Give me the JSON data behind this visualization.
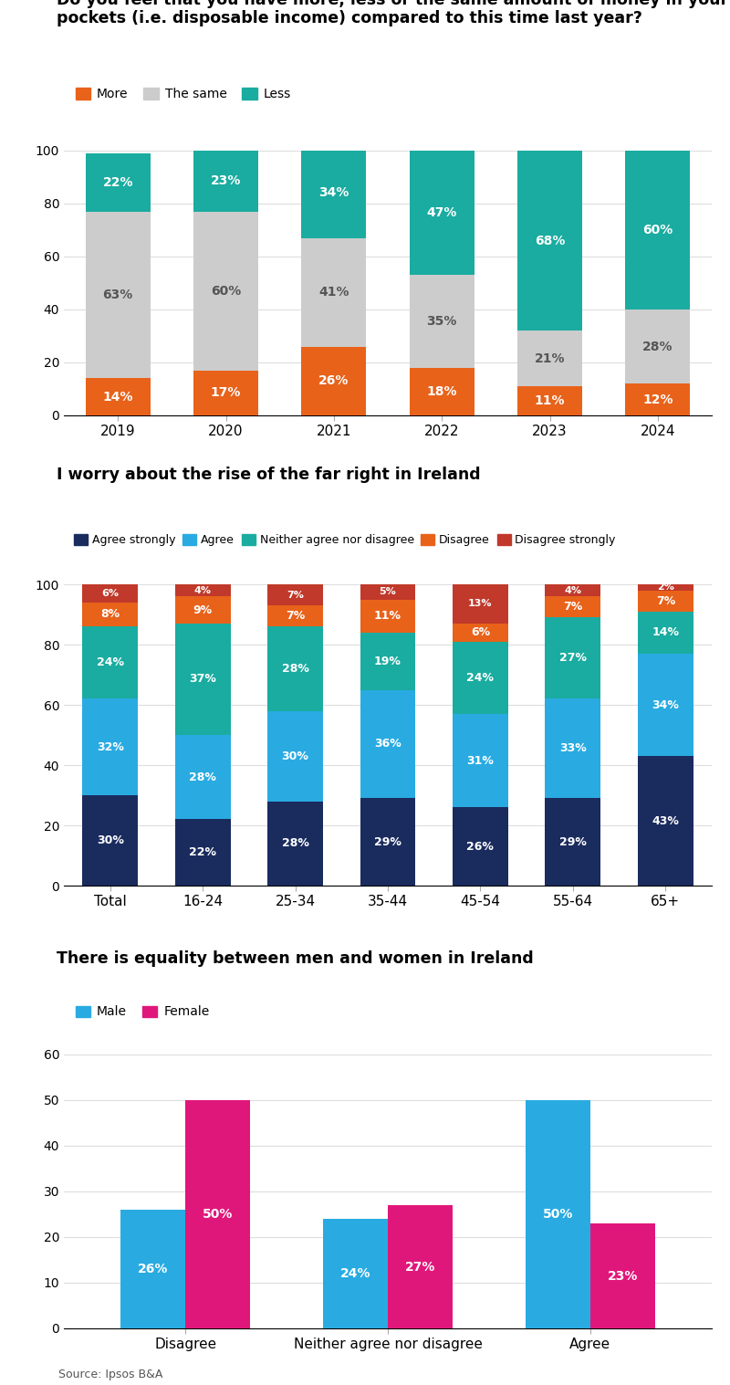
{
  "chart1": {
    "title": "Do you feel that you have more, less or the same amount of money in your\npockets (i.e. disposable income) compared to this time last year?",
    "categories": [
      "2019",
      "2020",
      "2021",
      "2022",
      "2023",
      "2024"
    ],
    "more": [
      14,
      17,
      26,
      18,
      11,
      12
    ],
    "same": [
      63,
      60,
      41,
      35,
      21,
      28
    ],
    "less": [
      22,
      23,
      34,
      47,
      68,
      60
    ],
    "colors": {
      "more": "#E8621A",
      "same": "#CCCCCC",
      "less": "#1AACA0"
    },
    "legend": [
      "More",
      "The same",
      "Less"
    ]
  },
  "chart2": {
    "title": "I worry about the rise of the far right in Ireland",
    "categories": [
      "Total",
      "16-24",
      "25-34",
      "35-44",
      "45-54",
      "55-64",
      "65+"
    ],
    "agree_strongly": [
      30,
      22,
      28,
      29,
      26,
      29,
      43
    ],
    "agree": [
      32,
      28,
      30,
      36,
      31,
      33,
      34
    ],
    "neither": [
      24,
      37,
      28,
      19,
      24,
      27,
      14
    ],
    "disagree": [
      8,
      9,
      7,
      11,
      6,
      7,
      7
    ],
    "disagree_str": [
      6,
      4,
      7,
      5,
      13,
      4,
      2
    ],
    "colors": {
      "agree_strongly": "#1A2B5E",
      "agree": "#29ABE2",
      "neither": "#1AACA0",
      "disagree": "#E8621A",
      "disagree_str": "#C0392B"
    },
    "legend": [
      "Agree strongly",
      "Agree",
      "Neither agree nor disagree",
      "Disagree",
      "Disagree strongly"
    ]
  },
  "chart3": {
    "title": "There is equality between men and women in Ireland",
    "categories": [
      "Disagree",
      "Neither agree nor disagree",
      "Agree"
    ],
    "male": [
      26,
      24,
      50
    ],
    "female": [
      50,
      27,
      23
    ],
    "colors": {
      "male": "#29ABE2",
      "female": "#E0177B"
    },
    "legend": [
      "Male",
      "Female"
    ],
    "ylim": [
      0,
      60
    ]
  },
  "source": "Source: Ipsos B&A",
  "bg_color": "#FFFFFF"
}
